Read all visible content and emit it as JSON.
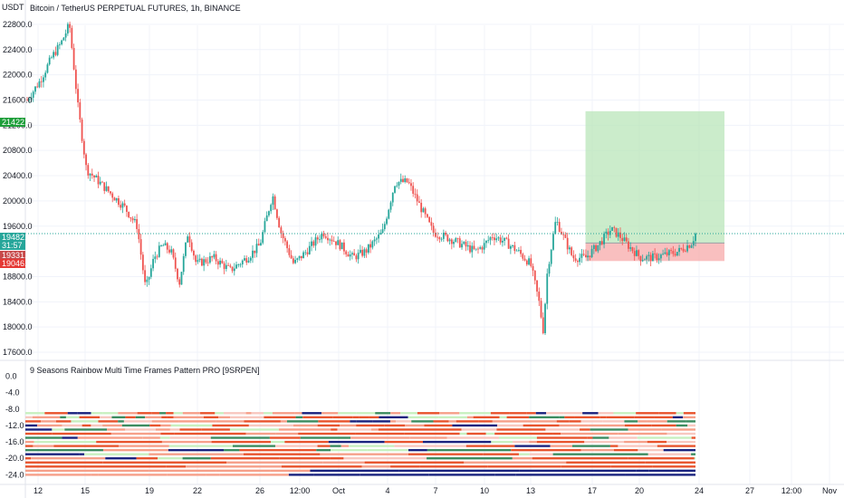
{
  "header": {
    "currency": "USDT",
    "title": "Bitcoin / TetherUS PERPETUAL FUTURES, 1h, BINANCE"
  },
  "indicator": {
    "title": "9 Seasons Rainbow Multi Time Frames Pattern PRO [9SRPEN]"
  },
  "price_badges": [
    {
      "text": "21422.4",
      "color": "#1e9e3a"
    },
    {
      "text": "19482.1",
      "color": "#26a69a"
    },
    {
      "text": "31:57",
      "color": "#26a69a"
    },
    {
      "text": "19331.9",
      "color": "#c74a4a"
    },
    {
      "text": "19046.8",
      "color": "#e53935"
    }
  ],
  "chart_data": [
    {
      "type": "candlestick",
      "title": "Bitcoin / TetherUS PERPETUAL FUTURES, 1h, BINANCE",
      "ylabel": "USDT",
      "ylim": [
        17500,
        23100
      ],
      "y_ticks": [
        "22800.0",
        "22400.0",
        "22000.0",
        "21600.0",
        "21200.0",
        "20800.0",
        "20400.0",
        "20000.0",
        "19600.0",
        "18800.0",
        "18400.0",
        "18000.0",
        "17600.0"
      ],
      "x_ticks": [
        "12",
        "15",
        "19",
        "22",
        "26",
        "12:00",
        "Oct",
        "4",
        "7",
        "10",
        "13",
        "17",
        "20",
        "24",
        "27",
        "12:00",
        "Nov"
      ],
      "price_path": [
        [
          0,
          21600
        ],
        [
          3,
          21900
        ],
        [
          6,
          22300
        ],
        [
          8,
          22500
        ],
        [
          10,
          22800
        ],
        [
          12,
          21500
        ],
        [
          14,
          20500
        ],
        [
          17,
          20300
        ],
        [
          20,
          20100
        ],
        [
          23,
          19900
        ],
        [
          26,
          19600
        ],
        [
          28,
          18600
        ],
        [
          30,
          19100
        ],
        [
          32,
          19300
        ],
        [
          34,
          19200
        ],
        [
          36,
          18700
        ],
        [
          38,
          19500
        ],
        [
          40,
          19000
        ],
        [
          44,
          19100
        ],
        [
          48,
          18900
        ],
        [
          52,
          19100
        ],
        [
          55,
          19300
        ],
        [
          58,
          20100
        ],
        [
          60,
          19500
        ],
        [
          63,
          19000
        ],
        [
          66,
          19200
        ],
        [
          70,
          19500
        ],
        [
          74,
          19300
        ],
        [
          77,
          19100
        ],
        [
          80,
          19200
        ],
        [
          84,
          19500
        ],
        [
          87,
          20300
        ],
        [
          90,
          20300
        ],
        [
          93,
          19900
        ],
        [
          96,
          19500
        ],
        [
          100,
          19400
        ],
        [
          103,
          19300
        ],
        [
          106,
          19200
        ],
        [
          108,
          19300
        ],
        [
          110,
          19450
        ],
        [
          113,
          19350
        ],
        [
          116,
          19200
        ],
        [
          119,
          19000
        ],
        [
          121,
          18400
        ],
        [
          122,
          17950
        ],
        [
          123,
          18900
        ],
        [
          125,
          19700
        ],
        [
          127,
          19400
        ],
        [
          129,
          19100
        ],
        [
          132,
          19100
        ],
        [
          135,
          19300
        ],
        [
          138,
          19550
        ],
        [
          140,
          19450
        ],
        [
          142,
          19300
        ],
        [
          145,
          19100
        ],
        [
          148,
          19100
        ],
        [
          151,
          19150
        ],
        [
          154,
          19200
        ],
        [
          157,
          19330
        ],
        [
          158,
          19480
        ]
      ],
      "position_box": {
        "entry": 19331.9,
        "target": 21422.4,
        "stop": 19046.8,
        "start_t": 132,
        "end_t": 158
      },
      "last_price": 19482.1,
      "grid": true
    },
    {
      "type": "heatmap",
      "title": "9 Seasons Rainbow Multi Time Frames Pattern PRO [9SRPEN]",
      "ylim": [
        -24.8,
        1.2
      ],
      "y_ticks": [
        "0.0",
        "-4.0",
        "-8.0",
        "-12.0",
        "-16.0",
        "-20.0",
        "-24.0"
      ],
      "levels": [
        -9,
        -10,
        -11,
        -12,
        -13,
        -14,
        -15,
        -16,
        -17,
        -18,
        -19,
        -20,
        -21,
        -22,
        -23,
        -24
      ],
      "palette": {
        "deep_red": "#e8542e",
        "salmon": "#f6a08a",
        "pink": "#f8c8c0",
        "light_green": "#c8f0c0",
        "green": "#3c8c60",
        "navy": "#1a237e",
        "yellow": "#f5f28c"
      },
      "grid": false
    }
  ]
}
